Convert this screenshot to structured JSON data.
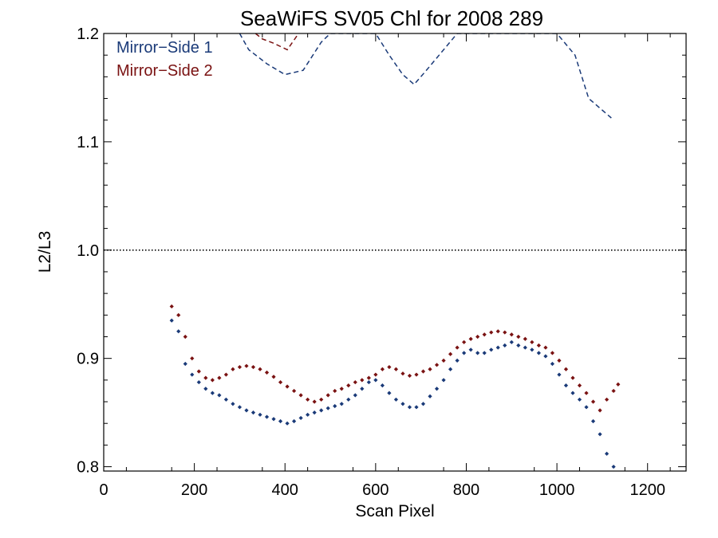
{
  "chart_data": {
    "type": "scatter",
    "title": "SeaWiFS SV05 Chl for 2008 289",
    "xlabel": "Scan Pixel",
    "ylabel": "L2/L3",
    "xlim": [
      0,
      1285
    ],
    "ylim": [
      0.796,
      1.2
    ],
    "xticks": [
      0,
      200,
      400,
      600,
      800,
      1000,
      1200
    ],
    "xtick_labels": [
      "0",
      "200",
      "400",
      "600",
      "800",
      "1000",
      "1200"
    ],
    "yticks": [
      0.8,
      0.9,
      1.0,
      1.1,
      1.2
    ],
    "ytick_labels": [
      "0.8",
      "0.9",
      "1.0",
      "1.1",
      "1.2"
    ],
    "reference_line": {
      "y": 1.0,
      "style": "dotted"
    },
    "legend_position": "top-left",
    "colors": {
      "ms1": "#1a3a78",
      "ms2": "#7a1212"
    },
    "series": [
      {
        "name": "Mirror−Side 1",
        "color": "#1a3a78",
        "marker": "diamond",
        "points": [
          [
            150,
            0.935
          ],
          [
            165,
            0.925
          ],
          [
            180,
            0.895
          ],
          [
            195,
            0.885
          ],
          [
            210,
            0.878
          ],
          [
            225,
            0.872
          ],
          [
            240,
            0.868
          ],
          [
            255,
            0.866
          ],
          [
            270,
            0.862
          ],
          [
            285,
            0.858
          ],
          [
            300,
            0.855
          ],
          [
            315,
            0.852
          ],
          [
            330,
            0.85
          ],
          [
            345,
            0.848
          ],
          [
            360,
            0.846
          ],
          [
            375,
            0.844
          ],
          [
            390,
            0.842
          ],
          [
            405,
            0.84
          ],
          [
            420,
            0.842
          ],
          [
            435,
            0.845
          ],
          [
            450,
            0.848
          ],
          [
            465,
            0.85
          ],
          [
            480,
            0.852
          ],
          [
            495,
            0.854
          ],
          [
            510,
            0.856
          ],
          [
            525,
            0.858
          ],
          [
            540,
            0.862
          ],
          [
            555,
            0.866
          ],
          [
            570,
            0.872
          ],
          [
            585,
            0.878
          ],
          [
            600,
            0.88
          ],
          [
            615,
            0.875
          ],
          [
            630,
            0.868
          ],
          [
            645,
            0.862
          ],
          [
            660,
            0.858
          ],
          [
            675,
            0.855
          ],
          [
            690,
            0.855
          ],
          [
            705,
            0.858
          ],
          [
            720,
            0.865
          ],
          [
            735,
            0.872
          ],
          [
            750,
            0.88
          ],
          [
            765,
            0.89
          ],
          [
            780,
            0.898
          ],
          [
            795,
            0.905
          ],
          [
            810,
            0.908
          ],
          [
            825,
            0.905
          ],
          [
            840,
            0.905
          ],
          [
            855,
            0.908
          ],
          [
            870,
            0.91
          ],
          [
            885,
            0.912
          ],
          [
            900,
            0.915
          ],
          [
            915,
            0.912
          ],
          [
            930,
            0.91
          ],
          [
            945,
            0.908
          ],
          [
            960,
            0.905
          ],
          [
            975,
            0.902
          ],
          [
            990,
            0.895
          ],
          [
            1005,
            0.885
          ],
          [
            1020,
            0.875
          ],
          [
            1035,
            0.868
          ],
          [
            1050,
            0.862
          ],
          [
            1065,
            0.855
          ],
          [
            1080,
            0.842
          ],
          [
            1095,
            0.83
          ],
          [
            1110,
            0.812
          ],
          [
            1125,
            0.8
          ]
        ],
        "curve": [
          [
            300,
            1.2
          ],
          [
            320,
            1.185
          ],
          [
            360,
            1.172
          ],
          [
            400,
            1.162
          ],
          [
            440,
            1.166
          ],
          [
            480,
            1.192
          ],
          [
            500,
            1.2
          ],
          [
            600,
            1.2
          ],
          [
            630,
            1.18
          ],
          [
            660,
            1.162
          ],
          [
            685,
            1.153
          ],
          [
            710,
            1.165
          ],
          [
            740,
            1.18
          ],
          [
            780,
            1.2
          ],
          [
            1000,
            1.2
          ],
          [
            1040,
            1.18
          ],
          [
            1070,
            1.14
          ],
          [
            1120,
            1.122
          ]
        ]
      },
      {
        "name": "Mirror−Side 2",
        "color": "#7a1212",
        "marker": "diamond",
        "points": [
          [
            150,
            0.948
          ],
          [
            165,
            0.94
          ],
          [
            180,
            0.92
          ],
          [
            195,
            0.9
          ],
          [
            210,
            0.888
          ],
          [
            225,
            0.882
          ],
          [
            240,
            0.88
          ],
          [
            255,
            0.882
          ],
          [
            270,
            0.885
          ],
          [
            285,
            0.89
          ],
          [
            300,
            0.892
          ],
          [
            315,
            0.893
          ],
          [
            330,
            0.892
          ],
          [
            345,
            0.89
          ],
          [
            360,
            0.887
          ],
          [
            375,
            0.883
          ],
          [
            390,
            0.878
          ],
          [
            405,
            0.874
          ],
          [
            420,
            0.87
          ],
          [
            435,
            0.866
          ],
          [
            450,
            0.862
          ],
          [
            465,
            0.86
          ],
          [
            480,
            0.862
          ],
          [
            495,
            0.866
          ],
          [
            510,
            0.87
          ],
          [
            525,
            0.872
          ],
          [
            540,
            0.875
          ],
          [
            555,
            0.878
          ],
          [
            570,
            0.88
          ],
          [
            585,
            0.882
          ],
          [
            600,
            0.885
          ],
          [
            615,
            0.89
          ],
          [
            630,
            0.892
          ],
          [
            645,
            0.89
          ],
          [
            660,
            0.886
          ],
          [
            675,
            0.884
          ],
          [
            690,
            0.885
          ],
          [
            705,
            0.888
          ],
          [
            720,
            0.89
          ],
          [
            735,
            0.894
          ],
          [
            750,
            0.898
          ],
          [
            765,
            0.904
          ],
          [
            780,
            0.91
          ],
          [
            795,
            0.915
          ],
          [
            810,
            0.918
          ],
          [
            825,
            0.92
          ],
          [
            840,
            0.922
          ],
          [
            855,
            0.924
          ],
          [
            870,
            0.925
          ],
          [
            885,
            0.924
          ],
          [
            900,
            0.922
          ],
          [
            915,
            0.92
          ],
          [
            930,
            0.918
          ],
          [
            945,
            0.915
          ],
          [
            960,
            0.912
          ],
          [
            975,
            0.91
          ],
          [
            990,
            0.905
          ],
          [
            1005,
            0.898
          ],
          [
            1020,
            0.89
          ],
          [
            1035,
            0.882
          ],
          [
            1050,
            0.875
          ],
          [
            1065,
            0.868
          ],
          [
            1080,
            0.86
          ],
          [
            1095,
            0.852
          ],
          [
            1110,
            0.862
          ],
          [
            1125,
            0.87
          ],
          [
            1135,
            0.876
          ]
        ],
        "curve": [
          [
            335,
            1.2
          ],
          [
            350,
            1.195
          ],
          [
            375,
            1.191
          ],
          [
            405,
            1.185
          ],
          [
            430,
            1.2
          ]
        ]
      }
    ]
  }
}
